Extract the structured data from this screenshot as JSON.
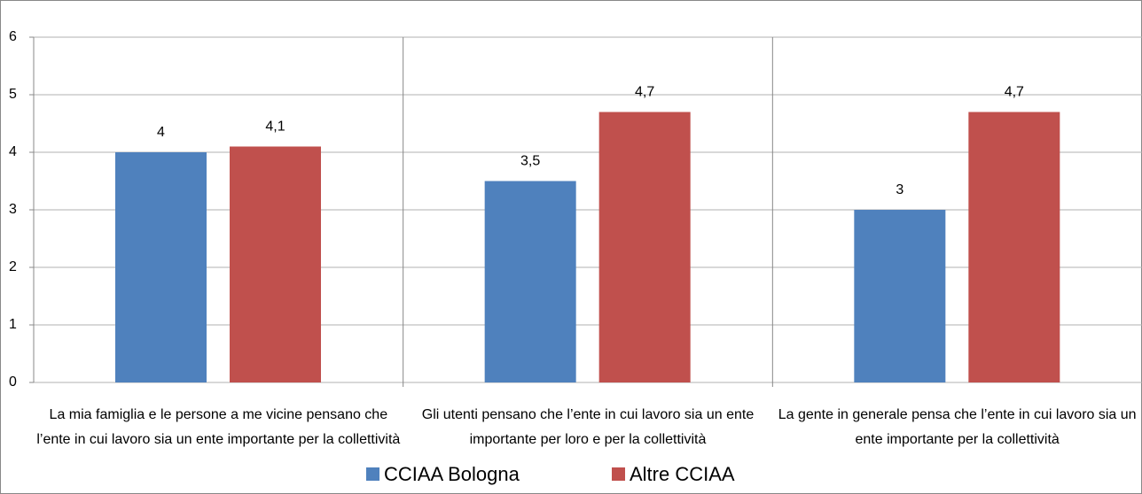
{
  "chart_data": {
    "type": "bar",
    "categories": [
      "La mia famiglia e le persone a me vicine pensano che l’ente in cui lavoro sia un ente importante per la collettività",
      "Gli utenti pensano che l’ente in cui lavoro sia un ente importante per loro e per la collettività",
      "La gente in generale pensa che l’ente in cui lavoro sia un ente importante per la collettività"
    ],
    "series": [
      {
        "name": "CCIAA Bologna",
        "color": "#4f81bd",
        "values": [
          4,
          3.5,
          3
        ],
        "value_labels": [
          "4",
          "3,5",
          "3"
        ]
      },
      {
        "name": "Altre CCIAA",
        "color": "#c0504d",
        "values": [
          4.1,
          4.7,
          4.7
        ],
        "value_labels": [
          "4,1",
          "4,7",
          "4,7"
        ]
      }
    ],
    "ylim": [
      0,
      6
    ],
    "yticks": [
      0,
      1,
      2,
      3,
      4,
      5,
      6
    ],
    "grid": true,
    "legend": "bottom"
  }
}
